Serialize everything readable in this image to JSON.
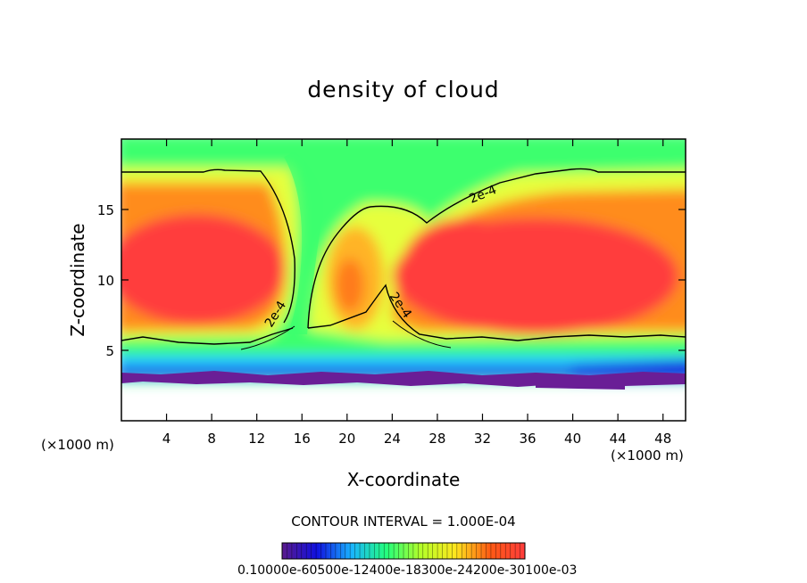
{
  "chart_data": {
    "type": "heatmap",
    "title": "density of cloud",
    "xlabel": "X-coordinate",
    "ylabel": "Z-coordinate",
    "x_unit_label": "(×1000 m)",
    "xlim": [
      0,
      50
    ],
    "ylim": [
      0,
      20
    ],
    "x_ticks": [
      4,
      8,
      12,
      16,
      20,
      24,
      28,
      32,
      36,
      40,
      44,
      48
    ],
    "y_ticks": [
      5,
      10,
      15
    ],
    "contour_label": "2e-4",
    "contour_interval_text": "CONTOUR INTERVAL = 1.000E-04",
    "colorbar_labels_text": "0.10000e-60500e-12400e-18300e-24200e-30100e-03",
    "colorbar_labels": [
      "0.1000",
      "0.6050e-04",
      "0.1240e-03",
      "0.1830e-03",
      "0.2420e-03",
      "0.3010e-03"
    ],
    "colorbar_range": [
      0.0,
      0.0003
    ],
    "colormap": [
      "#5a1a8c",
      "#1010e0",
      "#19b4ff",
      "#23ff7d",
      "#b4ff28",
      "#ffe61e",
      "#ff5a14",
      "#ff3c3c"
    ],
    "approx_fields": {
      "cloud_base_z": 3.0,
      "cloud_top_z": 17.6,
      "left_core": {
        "x_range": [
          0,
          15
        ],
        "z_range": [
          6,
          16
        ],
        "peak": 0.00029
      },
      "middle_core": {
        "x_range": [
          17,
          24
        ],
        "z_range": [
          7,
          13
        ],
        "peak": 0.00026
      },
      "right_core": {
        "x_range": [
          25,
          50
        ],
        "z_range": [
          6,
          16
        ],
        "peak": 0.0003
      },
      "clear_gap_x": [
        14,
        17
      ]
    }
  }
}
